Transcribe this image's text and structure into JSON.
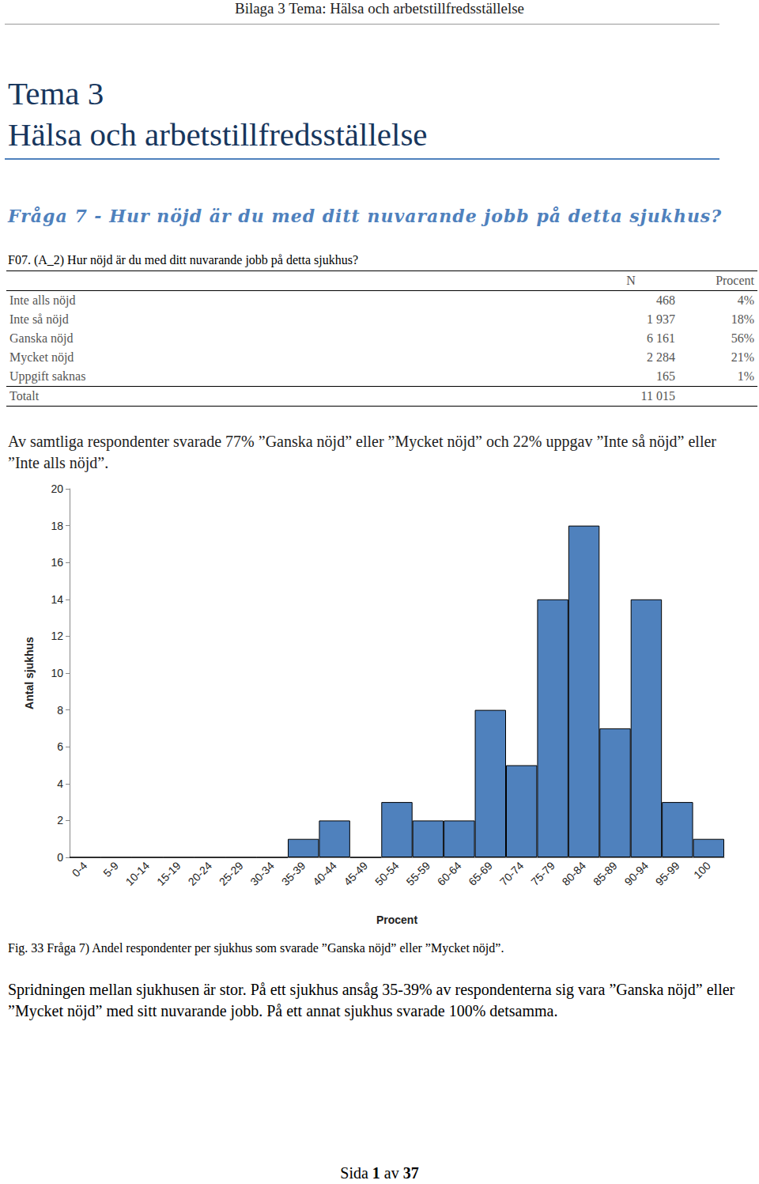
{
  "header": "Bilaga 3 Tema: Hälsa och arbetstillfredsställelse",
  "title": [
    "Tema 3",
    "Hälsa och arbetstillfredsställelse"
  ],
  "question": "Fråga 7 - Hur nöjd är du med ditt nuvarande jobb på detta sjukhus?",
  "subquestion": "F07. (A_2) Hur nöjd är du med ditt nuvarande jobb på detta sjukhus?",
  "table": {
    "columns": [
      "N",
      "Procent"
    ],
    "rows": [
      [
        "Inte alls nöjd",
        "468",
        "4%"
      ],
      [
        "Inte så nöjd",
        "1 937",
        "18%"
      ],
      [
        "Ganska nöjd",
        "6 161",
        "56%"
      ],
      [
        "Mycket nöjd",
        "2 284",
        "21%"
      ],
      [
        "Uppgift saknas",
        "165",
        "1%"
      ]
    ],
    "total": [
      "Totalt",
      "11 015"
    ]
  },
  "summary": "Av samtliga respondenter svarade 77% ”Ganska nöjd” eller ”Mycket nöjd” och 22% uppgav ”Inte så nöjd” eller ”Inte alls nöjd”.",
  "chart_data": {
    "type": "bar",
    "x_label": "Procent",
    "y_label": "Antal sjukhus",
    "categories": [
      "0-4",
      "5-9",
      "10-14",
      "15-19",
      "20-24",
      "25-29",
      "30-34",
      "35-39",
      "40-44",
      "45-49",
      "50-54",
      "55-59",
      "60-64",
      "65-69",
      "70-74",
      "75-79",
      "80-84",
      "85-89",
      "90-94",
      "95-99",
      "100"
    ],
    "values": [
      0,
      0,
      0,
      0,
      0,
      0,
      0,
      1,
      2,
      0,
      3,
      2,
      2,
      8,
      5,
      14,
      18,
      7,
      14,
      3,
      1
    ],
    "color": "#4f81bd",
    "ylim": [
      0,
      20
    ],
    "yticks": [
      0,
      2,
      4,
      6,
      8,
      10,
      12,
      14,
      16,
      18,
      20
    ],
    "grid": false
  },
  "caption": "Fig. 33 Fråga 7) Andel respondenter per sjukhus som svarade ”Ganska nöjd” eller ”Mycket nöjd”.",
  "conclusion": "Spridningen mellan sjukhusen är stor. På ett sjukhus ansåg 35-39% av respondenterna sig vara ”Ganska nöjd” eller ”Mycket nöjd” med sitt nuvarande jobb. På ett annat sjukhus svarade 100% detsamma.",
  "footer": {
    "prefix": "Sida",
    "page": "1",
    "middle": "av",
    "total": "37"
  }
}
